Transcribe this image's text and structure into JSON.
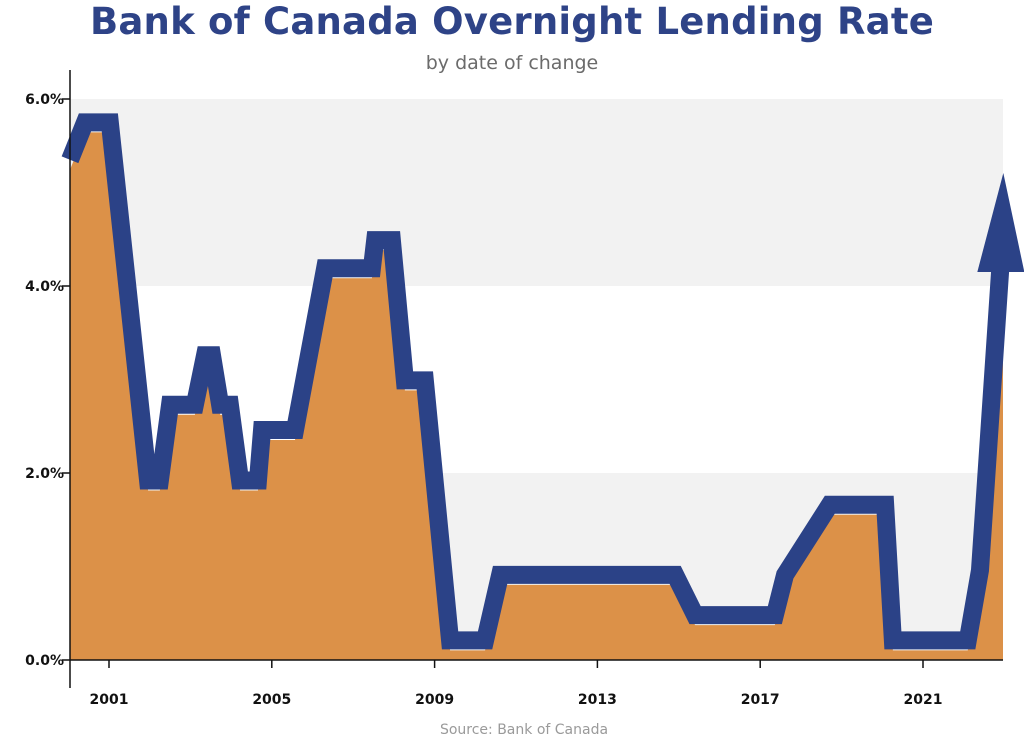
{
  "chart_data": {
    "type": "area",
    "title": "Bank of Canada Overnight Lending Rate",
    "subtitle": "by date of change",
    "source": "Source: Bank of Canada",
    "xlabel": "",
    "ylabel": "",
    "xlim": [
      2000.04,
      2023.1
    ],
    "ylim": [
      0,
      6
    ],
    "x_ticks": [
      2001,
      2005,
      2009,
      2013,
      2017,
      2021
    ],
    "y_ticks": [
      "0.0%",
      "2.0%",
      "4.0%",
      "6.0%"
    ],
    "y_tick_values": [
      0,
      2,
      4,
      6
    ],
    "grid": "alternating horizontal bands",
    "legend": "none",
    "colors": {
      "line": "#2b4287",
      "fill": "#dc9148",
      "band": "#f2f2f2",
      "title": "#2e4387"
    },
    "series": [
      {
        "x": [
          2000.04,
          2000.41,
          2001.02,
          2001.96,
          2002.25,
          2002.5,
          2003.11,
          2003.36,
          2003.53,
          2003.73,
          2003.97,
          2004.22,
          2004.66,
          2004.76,
          2005.57,
          2006.31,
          2007.46,
          2007.54,
          2007.95,
          2008.27,
          2008.76,
          2009.38,
          2010.24,
          2010.61,
          2014.91,
          2015.4,
          2017.36,
          2017.61,
          2018.71,
          2020.07,
          2020.26,
          2022.1,
          2022.4,
          2022.9
        ],
        "y": [
          5.35,
          5.75,
          5.75,
          1.92,
          1.92,
          2.73,
          2.73,
          3.26,
          3.26,
          2.73,
          2.73,
          1.92,
          1.92,
          2.46,
          2.46,
          4.19,
          4.19,
          4.49,
          4.49,
          2.99,
          2.99,
          0.21,
          0.21,
          0.91,
          0.91,
          0.48,
          0.48,
          0.91,
          1.66,
          1.66,
          0.21,
          0.21,
          0.96,
          4.3
        ]
      }
    ]
  }
}
